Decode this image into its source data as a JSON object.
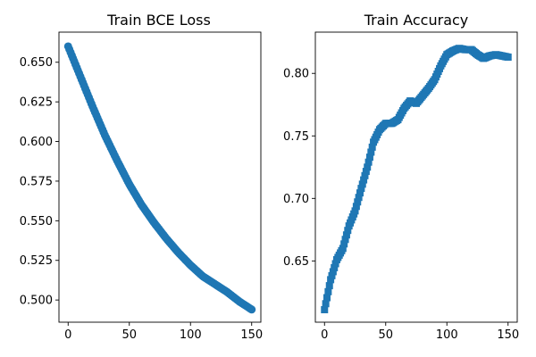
{
  "colors": {
    "series": "#1f77b4",
    "axes": "#000000",
    "background": "#ffffff"
  },
  "chart_data": [
    {
      "type": "scatter",
      "marker": "circle",
      "title": "Train BCE Loss",
      "xlabel": "",
      "ylabel": "",
      "xlim": [
        -7.5,
        157.5
      ],
      "ylim": [
        0.486,
        0.669
      ],
      "xticks": [
        0,
        50,
        100,
        150
      ],
      "yticks": [
        0.5,
        0.525,
        0.55,
        0.575,
        0.6,
        0.625,
        0.65
      ],
      "xtick_labels": [
        "0",
        "50",
        "100",
        "150"
      ],
      "ytick_labels": [
        "0.500",
        "0.525",
        "0.550",
        "0.575",
        "0.600",
        "0.625",
        "0.650"
      ],
      "grid": false,
      "x": [
        0,
        10,
        20,
        30,
        40,
        50,
        60,
        70,
        80,
        90,
        100,
        110,
        120,
        130,
        140,
        150
      ],
      "y": [
        0.66,
        0.641,
        0.622,
        0.604,
        0.588,
        0.573,
        0.56,
        0.549,
        0.539,
        0.53,
        0.522,
        0.515,
        0.51,
        0.505,
        0.499,
        0.494
      ]
    },
    {
      "type": "scatter",
      "marker": "square",
      "title": "Train Accuracy",
      "xlabel": "",
      "ylabel": "",
      "xlim": [
        -7.5,
        157.5
      ],
      "ylim": [
        0.601,
        0.833
      ],
      "xticks": [
        0,
        50,
        100,
        150
      ],
      "yticks": [
        0.65,
        0.7,
        0.75,
        0.8
      ],
      "xtick_labels": [
        "0",
        "50",
        "100",
        "150"
      ],
      "ytick_labels": [
        "0.65",
        "0.70",
        "0.75",
        "0.80"
      ],
      "grid": false,
      "x": [
        0,
        5,
        10,
        15,
        20,
        25,
        30,
        35,
        40,
        45,
        50,
        55,
        60,
        65,
        70,
        75,
        80,
        85,
        90,
        95,
        100,
        105,
        110,
        115,
        120,
        125,
        130,
        135,
        140,
        145,
        150
      ],
      "y": [
        0.611,
        0.635,
        0.651,
        0.66,
        0.678,
        0.69,
        0.708,
        0.725,
        0.745,
        0.755,
        0.76,
        0.76,
        0.763,
        0.772,
        0.778,
        0.776,
        0.782,
        0.788,
        0.795,
        0.806,
        0.815,
        0.818,
        0.82,
        0.819,
        0.819,
        0.815,
        0.812,
        0.814,
        0.815,
        0.814,
        0.813
      ]
    }
  ]
}
